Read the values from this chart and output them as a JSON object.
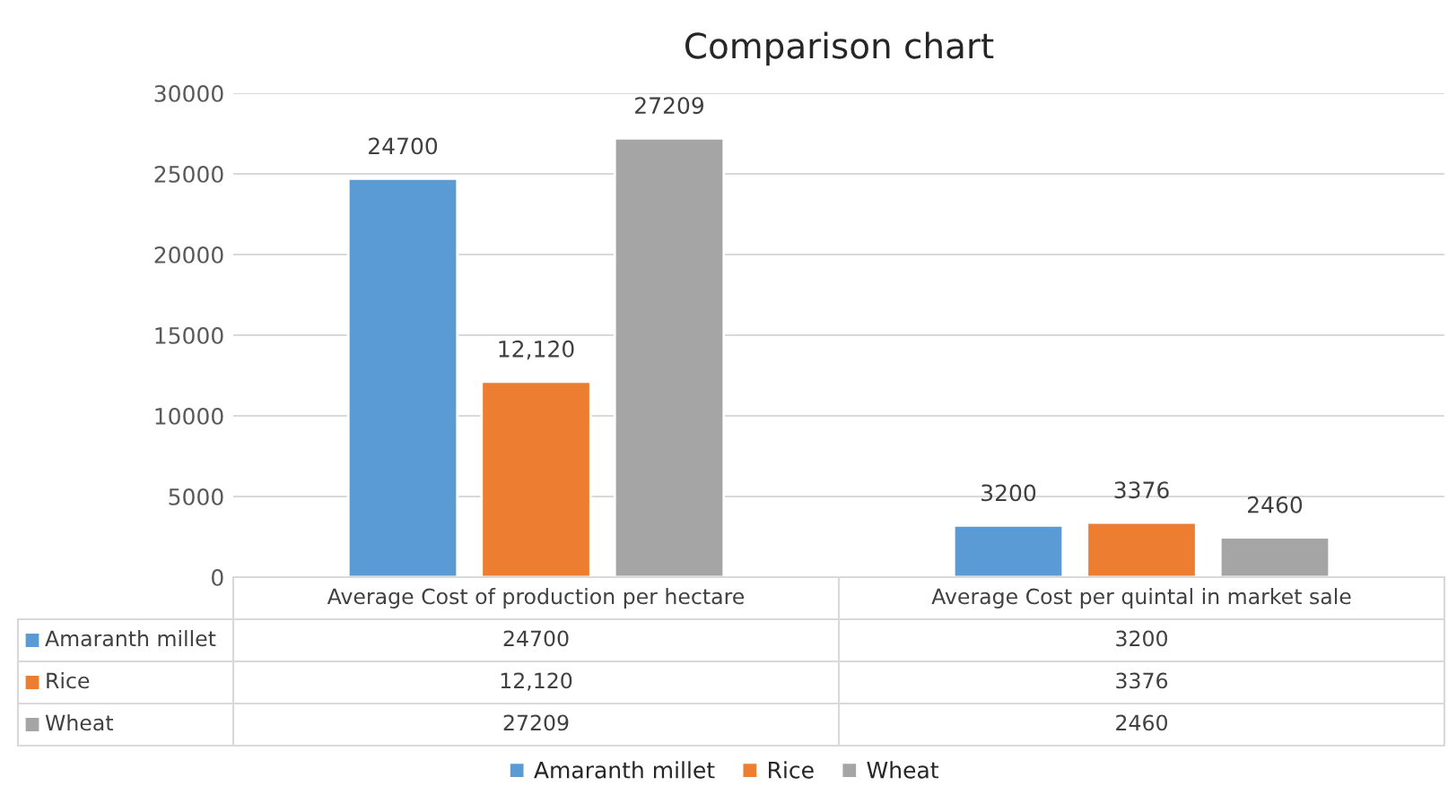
{
  "chart_data": {
    "type": "bar",
    "title": "Comparison chart",
    "categories": [
      "Average Cost of production per hectare",
      "Average Cost per quintal in market sale"
    ],
    "series": [
      {
        "name": "Amaranth millet",
        "color": "#5b9bd5",
        "values": [
          24700,
          3200
        ],
        "value_labels": [
          "24700",
          "3200"
        ]
      },
      {
        "name": "Rice",
        "color": "#ed7d31",
        "values": [
          12120,
          3376
        ],
        "value_labels": [
          "12,120",
          "3376"
        ]
      },
      {
        "name": "Wheat",
        "color": "#a5a5a5",
        "values": [
          27209,
          2460
        ],
        "value_labels": [
          "27209",
          "2460"
        ]
      }
    ],
    "ylim": [
      0,
      30000
    ],
    "yticks": [
      0,
      5000,
      10000,
      15000,
      20000,
      25000,
      30000
    ],
    "grid": "y",
    "legend": "bottom"
  }
}
